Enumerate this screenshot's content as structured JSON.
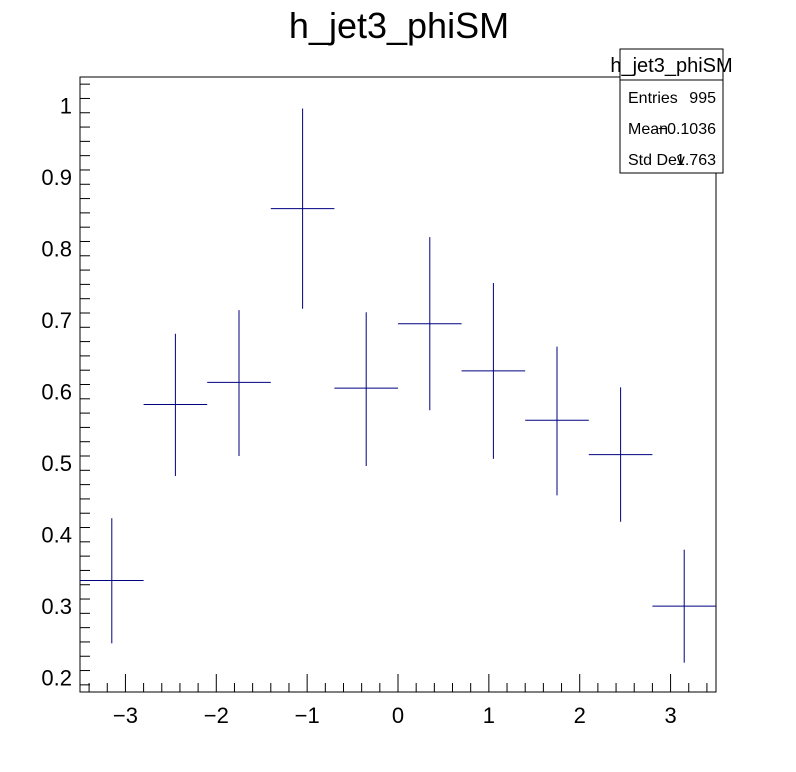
{
  "chart_data": {
    "type": "scatter",
    "title": "h_jet3_phiSM",
    "xlim": [
      -3.5,
      3.5
    ],
    "ylim": [
      0.18,
      1.04
    ],
    "x_ticks": [
      -3,
      -2,
      -1,
      0,
      1,
      2,
      3
    ],
    "y_ticks": [
      0.2,
      0.3,
      0.4,
      0.5,
      0.6,
      0.7,
      0.8,
      0.9,
      1
    ],
    "x_tick_labels": [
      "−3",
      "−2",
      "−1",
      "0",
      "1",
      "2",
      "3"
    ],
    "y_tick_labels": [
      "0.2",
      "0.3",
      "0.4",
      "0.5",
      "0.6",
      "0.7",
      "0.8",
      "0.9",
      "1"
    ],
    "bin_width": 0.7,
    "points": [
      {
        "x": -3.15,
        "y": 0.336,
        "ylo": 0.248,
        "yhi": 0.423
      },
      {
        "x": -2.45,
        "y": 0.582,
        "ylo": 0.482,
        "yhi": 0.681
      },
      {
        "x": -1.75,
        "y": 0.613,
        "ylo": 0.51,
        "yhi": 0.714
      },
      {
        "x": -1.05,
        "y": 0.856,
        "ylo": 0.716,
        "yhi": 0.996
      },
      {
        "x": -0.35,
        "y": 0.605,
        "ylo": 0.496,
        "yhi": 0.711
      },
      {
        "x": 0.35,
        "y": 0.695,
        "ylo": 0.574,
        "yhi": 0.816
      },
      {
        "x": 1.05,
        "y": 0.629,
        "ylo": 0.506,
        "yhi": 0.752
      },
      {
        "x": 1.75,
        "y": 0.56,
        "ylo": 0.455,
        "yhi": 0.663
      },
      {
        "x": 2.45,
        "y": 0.512,
        "ylo": 0.418,
        "yhi": 0.606
      },
      {
        "x": 3.15,
        "y": 0.3,
        "ylo": 0.221,
        "yhi": 0.379
      }
    ],
    "marker_color": "#000080",
    "grid": false
  },
  "stats_box": {
    "title": "h_jet3_phiSM",
    "rows": [
      {
        "label": "Entries",
        "value": "995"
      },
      {
        "label": "Mean",
        "value": "−0.1036"
      },
      {
        "label": "Std Dev",
        "value": "1.763"
      }
    ]
  }
}
